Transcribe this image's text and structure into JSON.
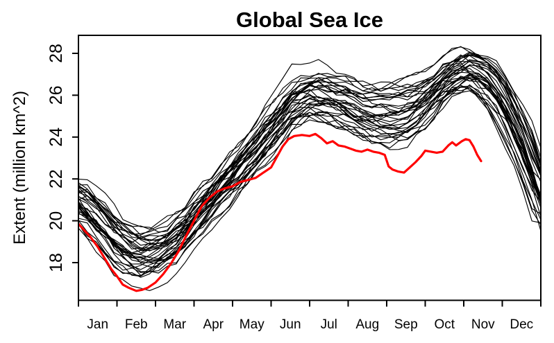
{
  "chart_data": {
    "type": "line",
    "title": "Global Sea Ice",
    "ylabel": "Extent (million km^2)",
    "xlabel": "",
    "grid": false,
    "legend": "none",
    "background_color": "#ffffff",
    "axis_color": "#000000",
    "xlim_months": [
      0,
      12
    ],
    "ylim": [
      16.2,
      28.9
    ],
    "y_ticks": [
      18,
      20,
      22,
      24,
      26,
      28
    ],
    "x_tick_labels": [
      "Jan",
      "Feb",
      "Mar",
      "Apr",
      "May",
      "Jun",
      "Jul",
      "Aug",
      "Sep",
      "Oct",
      "Nov",
      "Dec"
    ],
    "colors": {
      "ensemble": "#000000",
      "highlight": "#ff0000"
    },
    "ensemble": {
      "name": "previous-years-black-lines",
      "n_lines": 37,
      "x_months": [
        0,
        0.5,
        1,
        1.5,
        2,
        2.5,
        3,
        3.5,
        4,
        4.5,
        5,
        5.5,
        6,
        6.5,
        7,
        7.5,
        8,
        8.5,
        9,
        9.5,
        10,
        10.5,
        11,
        11.5,
        12
      ],
      "mean": [
        20.9,
        19.95,
        18.9,
        18.35,
        18.45,
        19.15,
        20.15,
        21.2,
        22.25,
        23.3,
        24.35,
        25.55,
        26.0,
        25.8,
        25.5,
        25.15,
        24.95,
        25.15,
        25.75,
        26.7,
        27.2,
        26.8,
        25.6,
        23.6,
        21.05
      ],
      "spread": [
        0.75,
        0.85,
        0.9,
        0.85,
        0.85,
        0.85,
        0.85,
        0.85,
        0.85,
        0.9,
        0.95,
        0.95,
        0.9,
        0.9,
        0.95,
        1.0,
        1.15,
        1.15,
        1.0,
        0.8,
        0.75,
        0.8,
        0.9,
        1.05,
        1.15
      ],
      "wiggle": 0.2,
      "points_per_line": 53,
      "outliers": {
        "low_feb_extra": 0.55,
        "high_jun_extra": 0.6,
        "high_oct_extra": 0.3
      }
    },
    "highlight_series": {
      "name": "current-year-red-line",
      "stroke_width": 3.2,
      "points": [
        [
          0.0,
          19.85
        ],
        [
          0.15,
          19.55
        ],
        [
          0.3,
          19.25
        ],
        [
          0.5,
          18.75
        ],
        [
          0.7,
          18.15
        ],
        [
          0.85,
          17.7
        ],
        [
          1.0,
          17.35
        ],
        [
          1.15,
          16.95
        ],
        [
          1.3,
          16.8
        ],
        [
          1.5,
          16.65
        ],
        [
          1.65,
          16.7
        ],
        [
          1.8,
          16.8
        ],
        [
          2.0,
          17.05
        ],
        [
          2.2,
          17.45
        ],
        [
          2.4,
          17.95
        ],
        [
          2.6,
          18.55
        ],
        [
          2.8,
          19.3
        ],
        [
          3.0,
          20.0
        ],
        [
          3.2,
          20.7
        ],
        [
          3.4,
          21.1
        ],
        [
          3.6,
          21.4
        ],
        [
          3.8,
          21.55
        ],
        [
          4.0,
          21.65
        ],
        [
          4.2,
          21.85
        ],
        [
          4.4,
          21.95
        ],
        [
          4.6,
          22.05
        ],
        [
          4.8,
          22.3
        ],
        [
          5.0,
          22.55
        ],
        [
          5.15,
          23.05
        ],
        [
          5.3,
          23.55
        ],
        [
          5.45,
          23.9
        ],
        [
          5.6,
          24.05
        ],
        [
          5.8,
          24.1
        ],
        [
          6.0,
          24.05
        ],
        [
          6.15,
          24.15
        ],
        [
          6.3,
          23.95
        ],
        [
          6.45,
          23.7
        ],
        [
          6.6,
          23.8
        ],
        [
          6.75,
          23.6
        ],
        [
          6.9,
          23.55
        ],
        [
          7.05,
          23.45
        ],
        [
          7.2,
          23.35
        ],
        [
          7.35,
          23.3
        ],
        [
          7.5,
          23.4
        ],
        [
          7.65,
          23.3
        ],
        [
          7.8,
          23.25
        ],
        [
          7.95,
          23.15
        ],
        [
          8.05,
          22.6
        ],
        [
          8.15,
          22.45
        ],
        [
          8.3,
          22.35
        ],
        [
          8.45,
          22.3
        ],
        [
          8.6,
          22.55
        ],
        [
          8.75,
          22.8
        ],
        [
          8.9,
          23.1
        ],
        [
          9.0,
          23.35
        ],
        [
          9.15,
          23.3
        ],
        [
          9.3,
          23.25
        ],
        [
          9.45,
          23.3
        ],
        [
          9.6,
          23.6
        ],
        [
          9.7,
          23.75
        ],
        [
          9.8,
          23.6
        ],
        [
          9.95,
          23.8
        ],
        [
          10.05,
          23.9
        ],
        [
          10.15,
          23.85
        ],
        [
          10.25,
          23.55
        ],
        [
          10.35,
          23.15
        ],
        [
          10.45,
          22.85
        ]
      ]
    }
  }
}
